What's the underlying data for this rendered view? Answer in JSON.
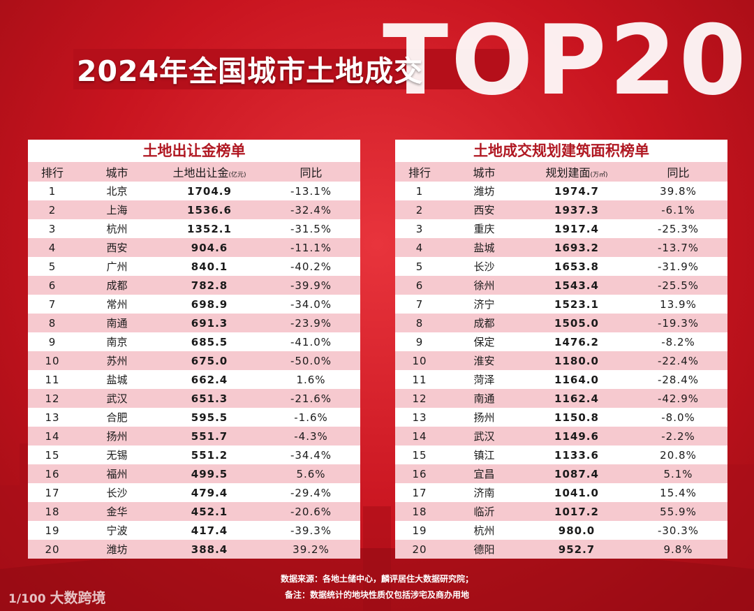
{
  "header": {
    "title": "2024年全国城市土地成交",
    "top_text": "TOP20"
  },
  "colors": {
    "accent": "#c8141f",
    "row_alt": "#f6c9cf",
    "panel_title": "#b01822"
  },
  "left_table": {
    "title": "土地出让金榜单",
    "columns": [
      "排行",
      "城市",
      "土地出让金",
      "同比"
    ],
    "unit": "(亿元)",
    "rows": [
      [
        "1",
        "北京",
        "1704.9",
        "-13.1%"
      ],
      [
        "2",
        "上海",
        "1536.6",
        "-32.4%"
      ],
      [
        "3",
        "杭州",
        "1352.1",
        "-31.5%"
      ],
      [
        "4",
        "西安",
        "904.6",
        "-11.1%"
      ],
      [
        "5",
        "广州",
        "840.1",
        "-40.2%"
      ],
      [
        "6",
        "成都",
        "782.8",
        "-39.9%"
      ],
      [
        "7",
        "常州",
        "698.9",
        "-34.0%"
      ],
      [
        "8",
        "南通",
        "691.3",
        "-23.9%"
      ],
      [
        "9",
        "南京",
        "685.5",
        "-41.0%"
      ],
      [
        "10",
        "苏州",
        "675.0",
        "-50.0%"
      ],
      [
        "11",
        "盐城",
        "662.4",
        "1.6%"
      ],
      [
        "12",
        "武汉",
        "651.3",
        "-21.6%"
      ],
      [
        "13",
        "合肥",
        "595.5",
        "-1.6%"
      ],
      [
        "14",
        "扬州",
        "551.7",
        "-4.3%"
      ],
      [
        "15",
        "无锡",
        "551.2",
        "-34.4%"
      ],
      [
        "16",
        "福州",
        "499.5",
        "5.6%"
      ],
      [
        "17",
        "长沙",
        "479.4",
        "-29.4%"
      ],
      [
        "18",
        "金华",
        "452.1",
        "-20.6%"
      ],
      [
        "19",
        "宁波",
        "417.4",
        "-39.3%"
      ],
      [
        "20",
        "潍坊",
        "388.4",
        "39.2%"
      ]
    ]
  },
  "right_table": {
    "title": "土地成交规划建筑面积榜单",
    "columns": [
      "排行",
      "城市",
      "规划建面",
      "同比"
    ],
    "unit": "(万㎡)",
    "rows": [
      [
        "1",
        "潍坊",
        "1974.7",
        "39.8%"
      ],
      [
        "2",
        "西安",
        "1937.3",
        "-6.1%"
      ],
      [
        "3",
        "重庆",
        "1917.4",
        "-25.3%"
      ],
      [
        "4",
        "盐城",
        "1693.2",
        "-13.7%"
      ],
      [
        "5",
        "长沙",
        "1653.8",
        "-31.9%"
      ],
      [
        "6",
        "徐州",
        "1543.4",
        "-25.5%"
      ],
      [
        "7",
        "济宁",
        "1523.1",
        "13.9%"
      ],
      [
        "8",
        "成都",
        "1505.0",
        "-19.3%"
      ],
      [
        "9",
        "保定",
        "1476.2",
        "-8.2%"
      ],
      [
        "10",
        "淮安",
        "1180.0",
        "-22.4%"
      ],
      [
        "11",
        "菏泽",
        "1164.0",
        "-28.4%"
      ],
      [
        "12",
        "南通",
        "1162.4",
        "-42.9%"
      ],
      [
        "13",
        "扬州",
        "1150.8",
        "-8.0%"
      ],
      [
        "14",
        "武汉",
        "1149.6",
        "-2.2%"
      ],
      [
        "15",
        "镇江",
        "1133.6",
        "20.8%"
      ],
      [
        "16",
        "宜昌",
        "1087.4",
        "5.1%"
      ],
      [
        "17",
        "济南",
        "1041.0",
        "15.4%"
      ],
      [
        "18",
        "临沂",
        "1017.2",
        "55.9%"
      ],
      [
        "19",
        "杭州",
        "980.0",
        "-30.3%"
      ],
      [
        "20",
        "德阳",
        "952.7",
        "9.8%"
      ]
    ]
  },
  "chart_data": [
    {
      "type": "table",
      "title": "土地出让金榜单",
      "columns": [
        "排行",
        "城市",
        "土地出让金(亿元)",
        "同比"
      ],
      "categories": [
        "北京",
        "上海",
        "杭州",
        "西安",
        "广州",
        "成都",
        "常州",
        "南通",
        "南京",
        "苏州",
        "盐城",
        "武汉",
        "合肥",
        "扬州",
        "无锡",
        "福州",
        "长沙",
        "金华",
        "宁波",
        "潍坊"
      ],
      "series": [
        {
          "name": "土地出让金",
          "values": [
            1704.9,
            1536.6,
            1352.1,
            904.6,
            840.1,
            782.8,
            698.9,
            691.3,
            685.5,
            675.0,
            662.4,
            651.3,
            595.5,
            551.7,
            551.2,
            499.5,
            479.4,
            452.1,
            417.4,
            388.4
          ]
        },
        {
          "name": "同比",
          "values": [
            -13.1,
            -32.4,
            -31.5,
            -11.1,
            -40.2,
            -39.9,
            -34.0,
            -23.9,
            -41.0,
            -50.0,
            1.6,
            -21.6,
            -1.6,
            -4.3,
            -34.4,
            5.6,
            -29.4,
            -20.6,
            -39.3,
            39.2
          ]
        }
      ]
    },
    {
      "type": "table",
      "title": "土地成交规划建筑面积榜单",
      "columns": [
        "排行",
        "城市",
        "规划建面(万㎡)",
        "同比"
      ],
      "categories": [
        "潍坊",
        "西安",
        "重庆",
        "盐城",
        "长沙",
        "徐州",
        "济宁",
        "成都",
        "保定",
        "淮安",
        "菏泽",
        "南通",
        "扬州",
        "武汉",
        "镇江",
        "宜昌",
        "济南",
        "临沂",
        "杭州",
        "德阳"
      ],
      "series": [
        {
          "name": "规划建面",
          "values": [
            1974.7,
            1937.3,
            1917.4,
            1693.2,
            1653.8,
            1543.4,
            1523.1,
            1505.0,
            1476.2,
            1180.0,
            1164.0,
            1162.4,
            1150.8,
            1149.6,
            1133.6,
            1087.4,
            1041.0,
            1017.2,
            980.0,
            952.7
          ]
        },
        {
          "name": "同比",
          "values": [
            39.8,
            -6.1,
            -25.3,
            -13.7,
            -31.9,
            -25.5,
            13.9,
            -19.3,
            -8.2,
            -22.4,
            -28.4,
            -42.9,
            -8.0,
            -2.2,
            20.8,
            5.1,
            15.4,
            55.9,
            -30.3,
            9.8
          ]
        }
      ]
    }
  ],
  "footer": {
    "source": "数据来源：各地土储中心，麟评居住大数据研究院；",
    "note": "备注：数据统计的地块性质仅包括涉宅及商办用地"
  },
  "logo": {
    "mark": "1/100",
    "text": "大数跨境"
  }
}
